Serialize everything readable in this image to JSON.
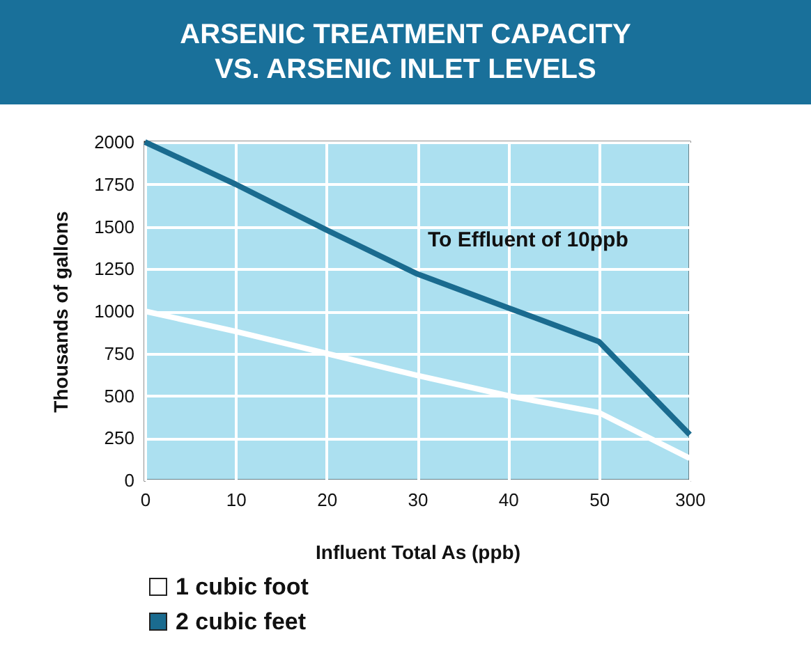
{
  "chart_data": {
    "type": "line",
    "title": "ARSENIC TREATMENT CAPACITY VS. ARSENIC INLET LEVELS",
    "xlabel": "Influent Total As (ppb)",
    "ylabel": "Thousands of gallons",
    "categories": [
      "0",
      "10",
      "20",
      "30",
      "40",
      "50",
      "300"
    ],
    "series": [
      {
        "name": "1 cubic foot",
        "color": "#ffffff",
        "values": [
          1000,
          880,
          750,
          620,
          500,
          400,
          130
        ]
      },
      {
        "name": "2 cubic feet",
        "color": "#1a6b8f",
        "values": [
          2000,
          1750,
          1480,
          1220,
          1020,
          820,
          270
        ]
      }
    ],
    "ylim": [
      0,
      2000
    ],
    "yticks": [
      0,
      250,
      500,
      750,
      1000,
      1250,
      1500,
      1750,
      2000
    ],
    "grid": true,
    "legend": "bottom",
    "marker": "none",
    "line_style": "solid",
    "annotations": [
      "To Effluent of 10ppb"
    ]
  }
}
